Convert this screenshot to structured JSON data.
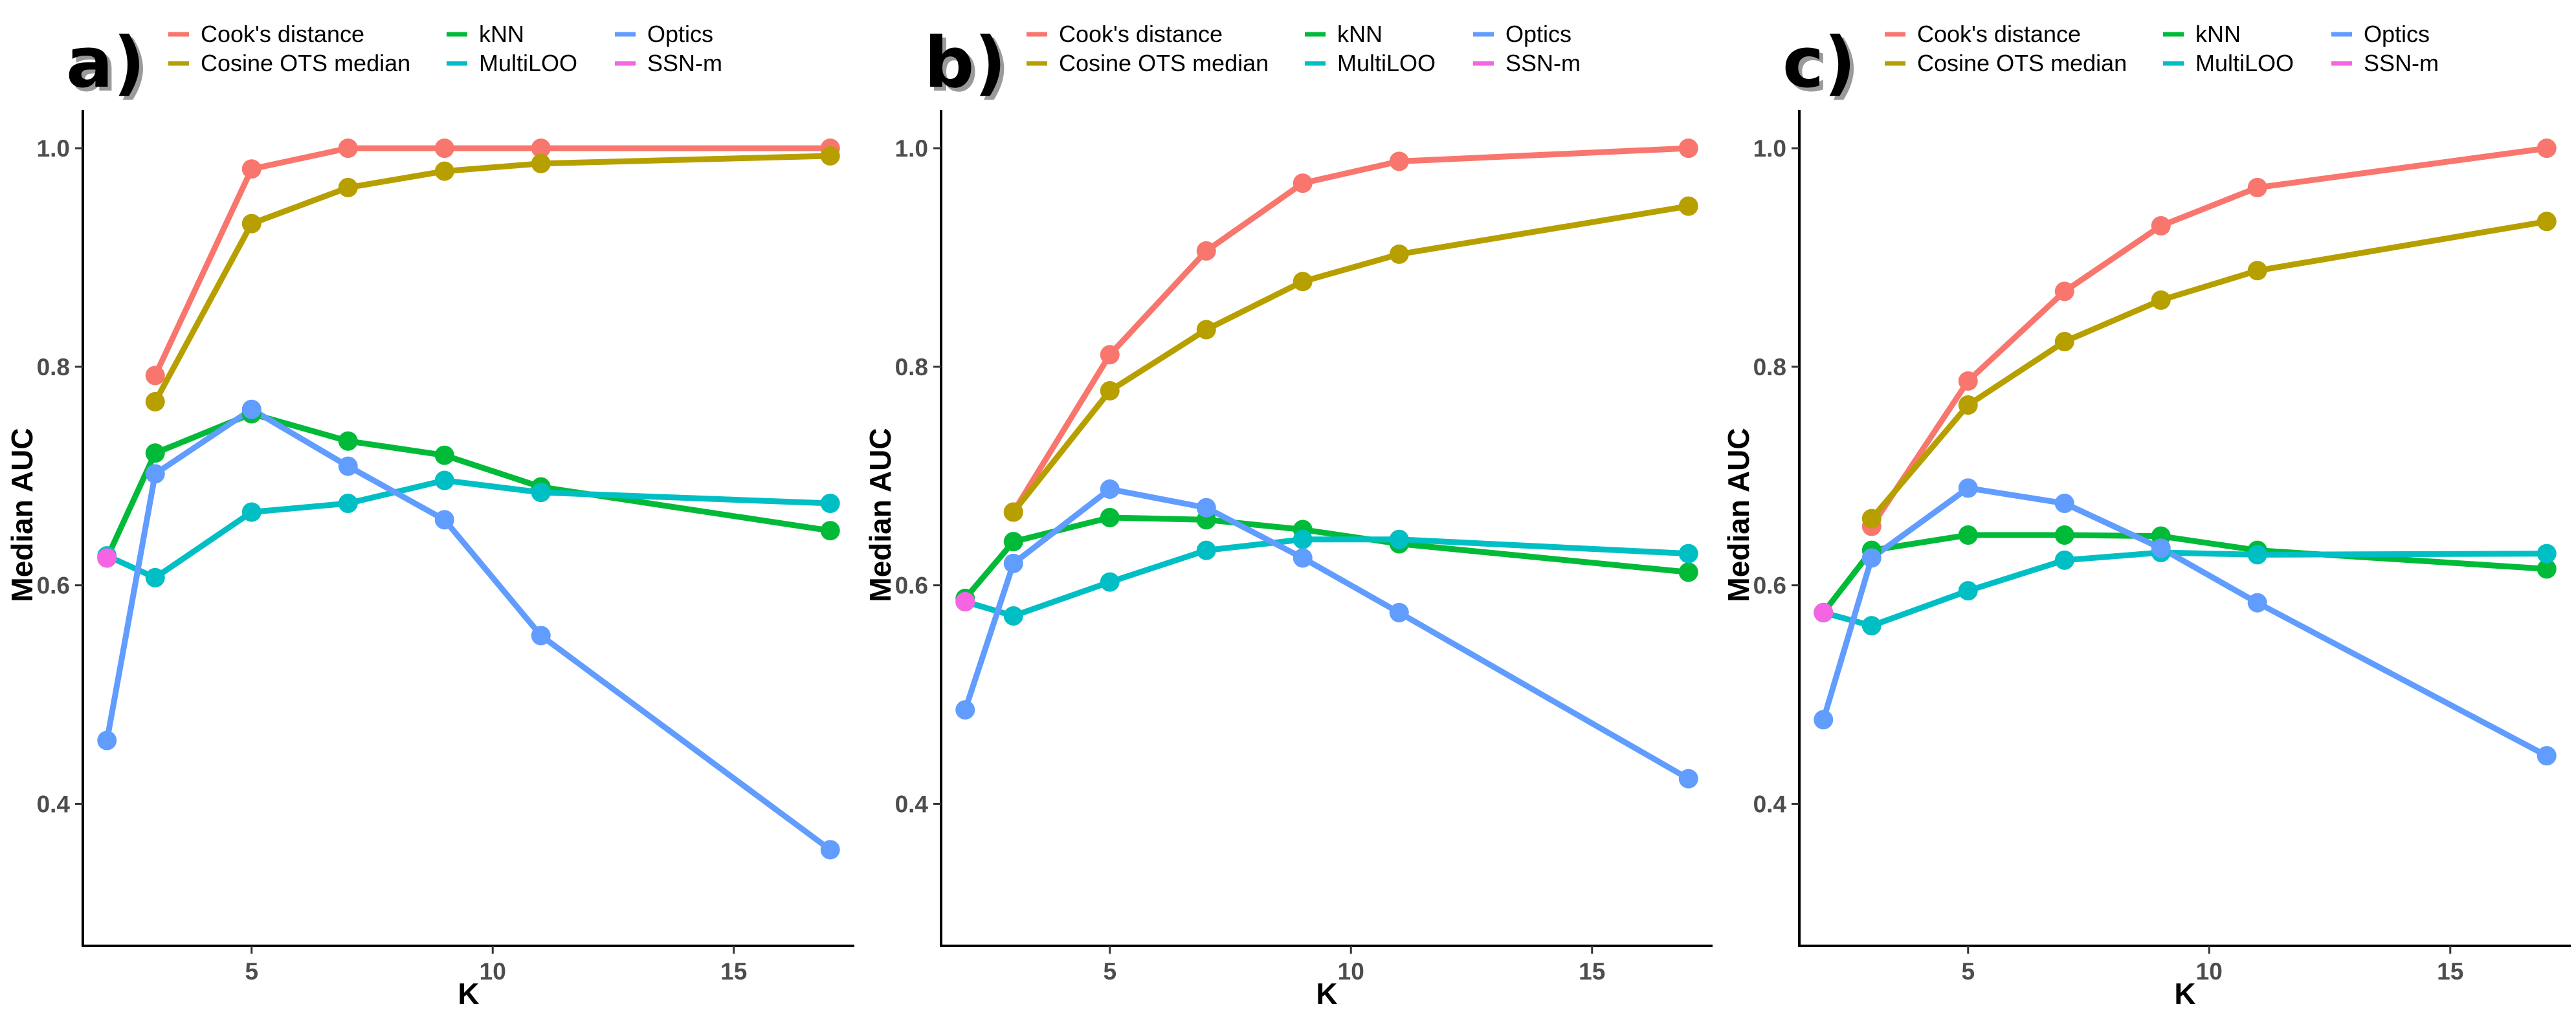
{
  "figure": {
    "legend_labels": [
      "Cook's distance",
      "Cosine OTS median",
      "kNN",
      "MultiLOO",
      "Optics",
      "SSN-m"
    ]
  },
  "chart_data": [
    {
      "type": "line",
      "panel_label": "a)",
      "xlabel": "K",
      "ylabel": "Median AUC",
      "xlim": [
        1.5,
        17.5
      ],
      "ylim": [
        0.27,
        1.035
      ],
      "x_ticks": [
        5,
        10,
        15
      ],
      "y_ticks": [
        0.4,
        0.6,
        0.8,
        1.0
      ],
      "y_tick_labels": [
        "0.4",
        "0.6",
        "0.8",
        "1.0"
      ],
      "grid": false,
      "legend_position": "top",
      "series": [
        {
          "name": "Cook's distance",
          "color": "#F8766D",
          "x": [
            3,
            5,
            7,
            9,
            11,
            17
          ],
          "y": [
            0.792,
            0.981,
            1.0,
            1.0,
            1.0,
            1.0
          ]
        },
        {
          "name": "Cosine OTS median",
          "color": "#B79F00",
          "x": [
            3,
            5,
            7,
            9,
            11,
            17
          ],
          "y": [
            0.768,
            0.931,
            0.964,
            0.979,
            0.986,
            0.993
          ]
        },
        {
          "name": "kNN",
          "color": "#00BA38",
          "x": [
            2,
            3,
            5,
            7,
            9,
            11,
            17
          ],
          "y": [
            0.625,
            0.721,
            0.757,
            0.732,
            0.719,
            0.69,
            0.65
          ]
        },
        {
          "name": "MultiLOO",
          "color": "#00BFC4",
          "x": [
            2,
            3,
            5,
            7,
            9,
            11,
            17
          ],
          "y": [
            0.627,
            0.607,
            0.667,
            0.675,
            0.696,
            0.685,
            0.675
          ]
        },
        {
          "name": "Optics",
          "color": "#619CFF",
          "x": [
            2,
            3,
            5,
            7,
            9,
            11,
            17
          ],
          "y": [
            0.458,
            0.702,
            0.761,
            0.709,
            0.66,
            0.554,
            0.358
          ]
        },
        {
          "name": "SSN-m",
          "color": "#F564E3",
          "x": [
            2
          ],
          "y": [
            0.625
          ]
        }
      ]
    },
    {
      "type": "line",
      "panel_label": "b)",
      "xlabel": "K",
      "ylabel": "Median AUC",
      "xlim": [
        1.5,
        17.5
      ],
      "ylim": [
        0.27,
        1.035
      ],
      "x_ticks": [
        5,
        10,
        15
      ],
      "y_ticks": [
        0.4,
        0.6,
        0.8,
        1.0
      ],
      "y_tick_labels": [
        "0.4",
        "0.6",
        "0.8",
        "1.0"
      ],
      "grid": false,
      "legend_position": "top",
      "series": [
        {
          "name": "Cook's distance",
          "color": "#F8766D",
          "x": [
            3,
            5,
            7,
            9,
            11,
            17
          ],
          "y": [
            0.667,
            0.811,
            0.906,
            0.968,
            0.988,
            1.0
          ]
        },
        {
          "name": "Cosine OTS median",
          "color": "#B79F00",
          "x": [
            3,
            5,
            7,
            9,
            11,
            17
          ],
          "y": [
            0.667,
            0.778,
            0.834,
            0.878,
            0.903,
            0.947
          ]
        },
        {
          "name": "kNN",
          "color": "#00BA38",
          "x": [
            2,
            3,
            5,
            7,
            9,
            11,
            17
          ],
          "y": [
            0.588,
            0.64,
            0.662,
            0.66,
            0.651,
            0.638,
            0.612
          ]
        },
        {
          "name": "MultiLOO",
          "color": "#00BFC4",
          "x": [
            2,
            3,
            5,
            7,
            9,
            11,
            17
          ],
          "y": [
            0.585,
            0.572,
            0.603,
            0.632,
            0.642,
            0.642,
            0.629
          ]
        },
        {
          "name": "Optics",
          "color": "#619CFF",
          "x": [
            2,
            3,
            5,
            7,
            9,
            11,
            17
          ],
          "y": [
            0.486,
            0.62,
            0.688,
            0.671,
            0.625,
            0.575,
            0.423
          ]
        },
        {
          "name": "SSN-m",
          "color": "#F564E3",
          "x": [
            2
          ],
          "y": [
            0.585
          ]
        }
      ]
    },
    {
      "type": "line",
      "panel_label": "c)",
      "xlabel": "K",
      "ylabel": "Median AUC",
      "xlim": [
        1.5,
        17.5
      ],
      "ylim": [
        0.27,
        1.035
      ],
      "x_ticks": [
        5,
        10,
        15
      ],
      "y_ticks": [
        0.4,
        0.6,
        0.8,
        1.0
      ],
      "y_tick_labels": [
        "0.4",
        "0.6",
        "0.8",
        "1.0"
      ],
      "grid": false,
      "legend_position": "top",
      "series": [
        {
          "name": "Cook's distance",
          "color": "#F8766D",
          "x": [
            3,
            5,
            7,
            9,
            11,
            17
          ],
          "y": [
            0.654,
            0.787,
            0.869,
            0.929,
            0.964,
            1.0
          ]
        },
        {
          "name": "Cosine OTS median",
          "color": "#B79F00",
          "x": [
            3,
            5,
            7,
            9,
            11,
            17
          ],
          "y": [
            0.661,
            0.765,
            0.823,
            0.861,
            0.888,
            0.933
          ]
        },
        {
          "name": "kNN",
          "color": "#00BA38",
          "x": [
            2,
            3,
            5,
            7,
            9,
            11,
            17
          ],
          "y": [
            0.575,
            0.632,
            0.646,
            0.646,
            0.645,
            0.632,
            0.615
          ]
        },
        {
          "name": "MultiLOO",
          "color": "#00BFC4",
          "x": [
            2,
            3,
            5,
            7,
            9,
            11,
            17
          ],
          "y": [
            0.575,
            0.563,
            0.595,
            0.623,
            0.63,
            0.628,
            0.629
          ]
        },
        {
          "name": "Optics",
          "color": "#619CFF",
          "x": [
            2,
            3,
            5,
            7,
            9,
            11,
            17
          ],
          "y": [
            0.477,
            0.625,
            0.689,
            0.675,
            0.634,
            0.584,
            0.444
          ]
        },
        {
          "name": "SSN-m",
          "color": "#F564E3",
          "x": [
            2
          ],
          "y": [
            0.575
          ]
        }
      ]
    }
  ]
}
